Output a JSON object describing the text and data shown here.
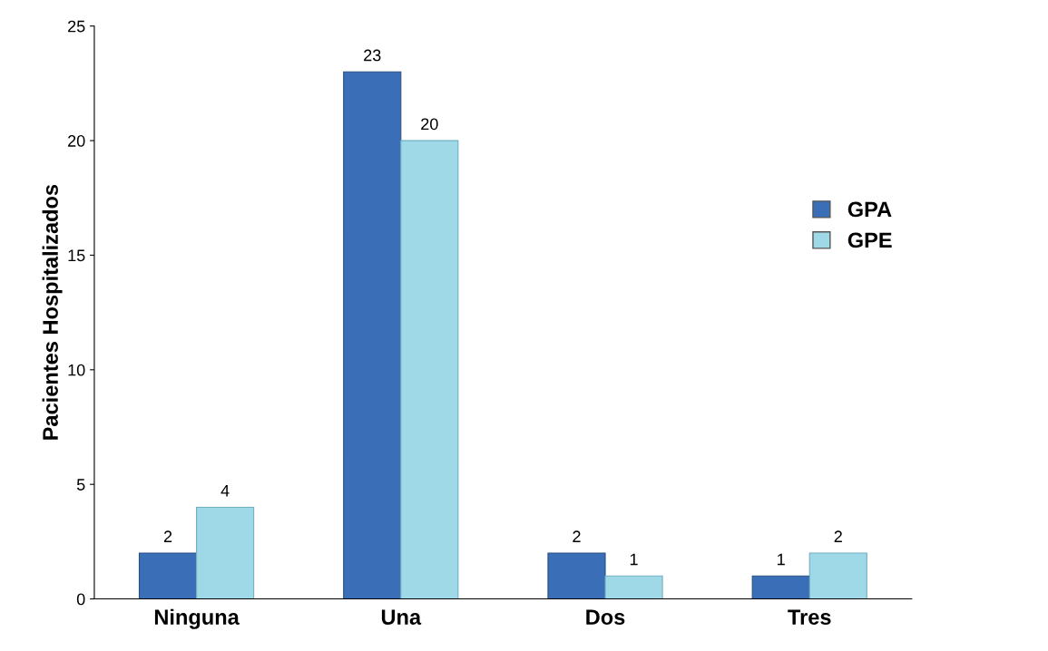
{
  "chart_data": {
    "type": "bar",
    "ylabel": "Pacientes Hospitalizados",
    "categories": [
      "Ninguna",
      "Una",
      "Dos",
      "Tres"
    ],
    "series": [
      {
        "name": "GPA",
        "color": "#3a6fb8",
        "values": [
          2,
          23,
          2,
          1
        ]
      },
      {
        "name": "GPE",
        "color": "#9fd8e6",
        "values": [
          4,
          20,
          1,
          2
        ]
      }
    ],
    "ylim": [
      0,
      25
    ],
    "yticks": [
      0,
      5,
      10,
      15,
      20,
      25
    ],
    "grid": false,
    "legend": "right",
    "data_labels": true
  }
}
